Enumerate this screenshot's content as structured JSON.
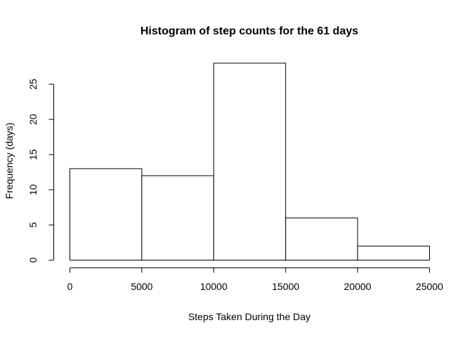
{
  "chart_data": {
    "type": "bar",
    "title": "Histogram of step counts for the 61 days",
    "xlabel": "Steps Taken During the Day",
    "ylabel": "Frequency (days)",
    "bins": [
      {
        "start": 0,
        "end": 5000,
        "count": 13
      },
      {
        "start": 5000,
        "end": 10000,
        "count": 12
      },
      {
        "start": 10000,
        "end": 15000,
        "count": 28
      },
      {
        "start": 15000,
        "end": 20000,
        "count": 6
      },
      {
        "start": 20000,
        "end": 25000,
        "count": 2
      }
    ],
    "x_ticks": [
      0,
      5000,
      10000,
      15000,
      20000,
      25000
    ],
    "y_ticks": [
      0,
      5,
      10,
      15,
      20,
      25
    ],
    "xlim": [
      0,
      25000
    ],
    "ylim": [
      0,
      28
    ],
    "grid": false,
    "bar_fill": "#ffffff",
    "bar_stroke": "#000000"
  }
}
